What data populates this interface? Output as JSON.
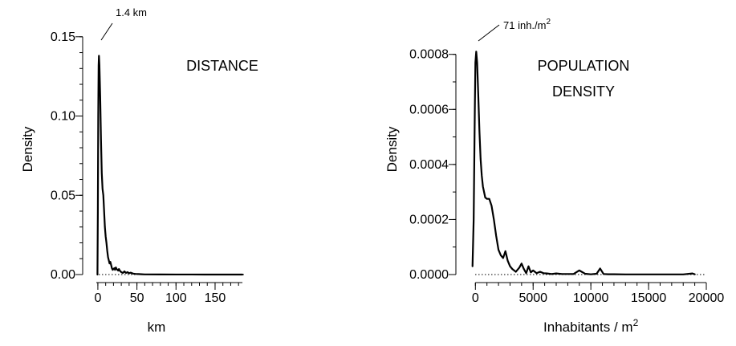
{
  "chart_data": [
    {
      "type": "line",
      "panel_title": "DISTANCE",
      "xlabel": "km",
      "ylabel": "Density",
      "xlim": [
        -3,
        187
      ],
      "ylim": [
        0,
        0.158
      ],
      "xticks": [
        0,
        50,
        100,
        150
      ],
      "xtick_labels": [
        "0",
        "50",
        "100",
        "150"
      ],
      "yticks": [
        0.0,
        0.05,
        0.1,
        0.15
      ],
      "ytick_labels": [
        "0.00",
        "0.05",
        "0.10",
        "0.15"
      ],
      "annotation": {
        "text": "1.4 km",
        "x": 1.4,
        "y": 0.138
      },
      "series": [
        {
          "x": [
            -0.5,
            0,
            0.5,
            1.0,
            1.4,
            2,
            3,
            4,
            5,
            6,
            7,
            8,
            9,
            10,
            11,
            12,
            13,
            14,
            15,
            16,
            17,
            18,
            19,
            20,
            21,
            22,
            23,
            24,
            25,
            26,
            27,
            28,
            29,
            30,
            32,
            34,
            36,
            38,
            40,
            42,
            45,
            48,
            52,
            56,
            60,
            80,
            100,
            120,
            140,
            160,
            185
          ],
          "y": [
            0,
            0.04,
            0.1,
            0.132,
            0.138,
            0.132,
            0.112,
            0.085,
            0.064,
            0.054,
            0.05,
            0.04,
            0.03,
            0.024,
            0.02,
            0.015,
            0.011,
            0.009,
            0.007,
            0.008,
            0.006,
            0.004,
            0.003,
            0.0035,
            0.004,
            0.003,
            0.0045,
            0.0035,
            0.003,
            0.0025,
            0.0035,
            0.0025,
            0.002,
            0.0015,
            0.001,
            0.002,
            0.001,
            0.0015,
            0.0008,
            0.0012,
            0.0006,
            0.0004,
            0.0003,
            0.0002,
            0.0001,
            5e-05,
            3e-05,
            2e-05,
            1e-05,
            1e-05,
            0
          ]
        }
      ]
    },
    {
      "type": "line",
      "panel_title_lines": [
        "POPULATION",
        "DENSITY"
      ],
      "xlabel": "Inhabitants / m",
      "xlabel_sup": "2",
      "ylabel": "Density",
      "xlim": [
        -300,
        20000
      ],
      "ylim": [
        0,
        0.00091
      ],
      "xticks": [
        0,
        5000,
        10000,
        15000,
        20000
      ],
      "xtick_labels": [
        "0",
        "5000",
        "10000",
        "15000",
        "20000"
      ],
      "yticks": [
        0.0,
        0.0002,
        0.0004,
        0.0006,
        0.0008
      ],
      "ytick_labels": [
        "0.0000",
        "0.0002",
        "0.0004",
        "0.0006",
        "0.0008"
      ],
      "annotation": {
        "text": "71 inh./m",
        "sup": "2",
        "x": 71,
        "y": 0.00081
      },
      "series": [
        {
          "x": [
            -250,
            -150,
            -50,
            0,
            71,
            150,
            250,
            350,
            450,
            550,
            650,
            750,
            850,
            1000,
            1200,
            1400,
            1600,
            1800,
            2000,
            2200,
            2400,
            2600,
            2800,
            3000,
            3200,
            3500,
            3800,
            4000,
            4200,
            4400,
            4600,
            4800,
            5000,
            5300,
            5600,
            5900,
            6200,
            6600,
            7000,
            7500,
            8000,
            8500,
            9000,
            9500,
            10000,
            10500,
            10800,
            11100,
            11500,
            12000,
            13000,
            14000,
            15000,
            16000,
            17000,
            18000,
            18800,
            19000
          ],
          "y": [
            3e-05,
            0.0002,
            0.0006,
            0.00077,
            0.00081,
            0.00077,
            0.00065,
            0.00052,
            0.00042,
            0.00036,
            0.00032,
            0.0003,
            0.00028,
            0.000275,
            0.000275,
            0.00025,
            0.0002,
            0.00014,
            9e-05,
            7e-05,
            6e-05,
            8.5e-05,
            5e-05,
            3e-05,
            2e-05,
            1e-05,
            2.5e-05,
            4e-05,
            2e-05,
            5e-06,
            3e-05,
            8e-06,
            1.5e-05,
            5e-06,
            1e-05,
            5e-06,
            4e-06,
            2e-06,
            4e-06,
            2e-06,
            2e-06,
            2e-06,
            1.5e-05,
            3e-06,
            1e-06,
            3e-06,
            2.2e-05,
            2e-06,
            1e-06,
            1e-06,
            5e-07,
            5e-07,
            5e-07,
            5e-07,
            5e-07,
            5e-07,
            4e-06,
            1e-06
          ]
        }
      ]
    }
  ]
}
